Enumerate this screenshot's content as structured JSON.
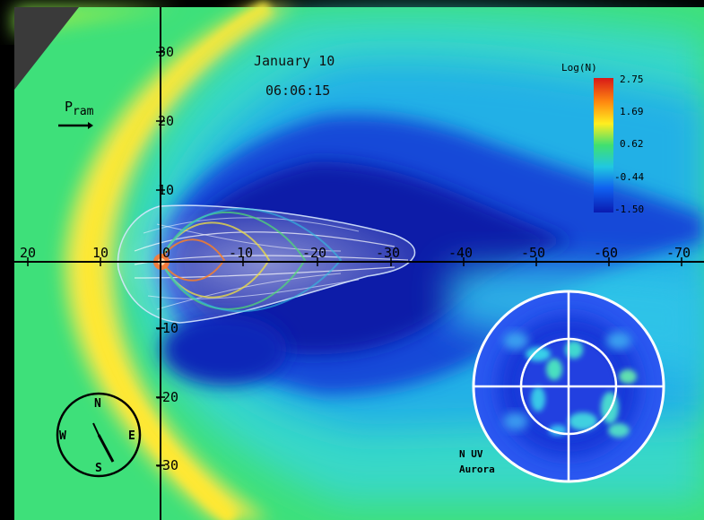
{
  "date": "January 10",
  "time": "06:06:15",
  "pram_label": "P",
  "pram_subscript": "ram",
  "colorbar": {
    "title": "Log(N)",
    "ticks": [
      "2.75",
      "1.69",
      "0.62",
      "-0.44",
      "-1.50"
    ],
    "colors": [
      "#d81818",
      "#ff9a10",
      "#ffee20",
      "#50e060",
      "#20c8d8",
      "#1060f0",
      "#0a1ab0"
    ]
  },
  "x_axis_ticks": [
    "20",
    "10",
    "0",
    "-10",
    "-20",
    "-30",
    "-40",
    "-50",
    "-60",
    "-70"
  ],
  "y_axis_ticks": [
    "30",
    "20",
    "10",
    "-10",
    "-20",
    "-30"
  ],
  "compass": {
    "n": "N",
    "s": "S",
    "e": "E",
    "w": "W"
  },
  "aurora": {
    "line1": "N UV",
    "line2": "Aurora"
  }
}
